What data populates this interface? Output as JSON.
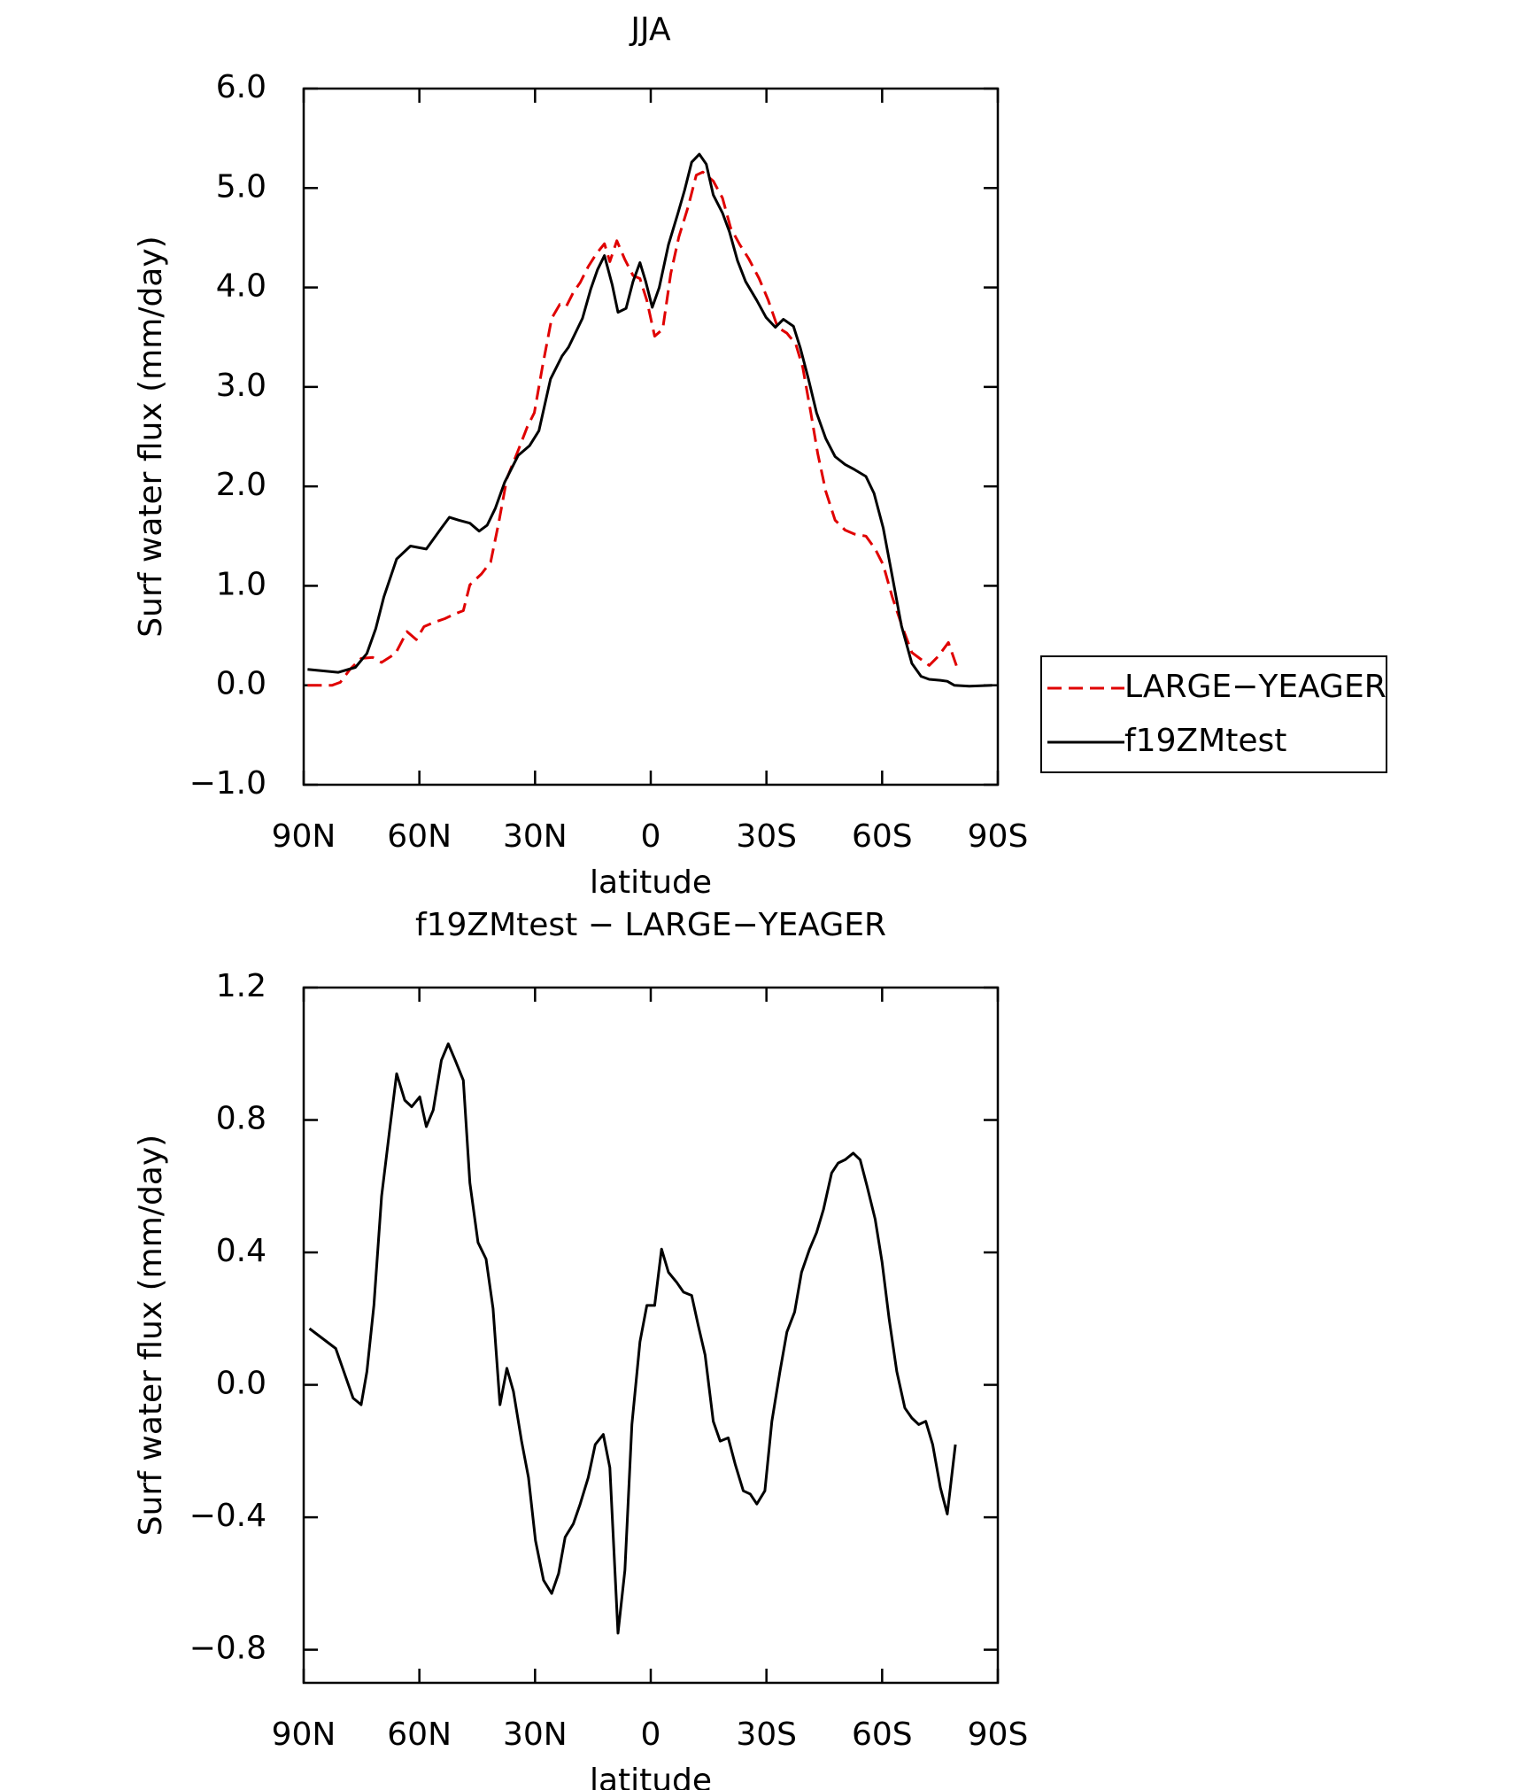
{
  "chart_data": [
    {
      "type": "line",
      "title": "JJA",
      "xlabel": "latitude",
      "ylabel": "Surf water flux (mm/day)",
      "xlim": [
        90,
        -90
      ],
      "ylim": [
        -1,
        6
      ],
      "xticks": [
        {
          "value": 90,
          "label": "90N"
        },
        {
          "value": 60,
          "label": "60N"
        },
        {
          "value": 30,
          "label": "30N"
        },
        0,
        {
          "value": -30,
          "label": "30S"
        },
        {
          "value": -60,
          "label": "60S"
        },
        {
          "value": -90,
          "label": "90S"
        }
      ],
      "yticks": [
        {
          "value": -1,
          "label": "−1.0"
        },
        {
          "value": 0,
          "label": "0.0"
        },
        {
          "value": 1,
          "label": "1.0"
        },
        {
          "value": 2,
          "label": "2.0"
        },
        {
          "value": 3,
          "label": "3.0"
        },
        {
          "value": 4,
          "label": "4.0"
        },
        {
          "value": 5,
          "label": "5.0"
        },
        {
          "value": 6,
          "label": "6.0"
        }
      ],
      "legend": "right",
      "series": [
        {
          "name": "LARGE−YEAGER",
          "color": "#e00000",
          "dash": true,
          "x": [
            89,
            82.6,
            80.5,
            78,
            75.1,
            72.1,
            69.8,
            66.2,
            63.2,
            60.8,
            58.8,
            56.4,
            53.4,
            50.7,
            48.6,
            46.9,
            43.9,
            41.5,
            39.4,
            37.3,
            34.4,
            32,
            30.2,
            28.1,
            25.7,
            23.6,
            21.9,
            20.1,
            18.3,
            16.2,
            14.1,
            12,
            10.6,
            8.8,
            6.7,
            4.6,
            2.8,
            1.0,
            -1.0,
            -3.1,
            -5.2,
            -7.3,
            -9.7,
            -11.8,
            -13.5,
            -16.2,
            -18.6,
            -20.7,
            -23.1,
            -25.4,
            -28.1,
            -30.5,
            -32.9,
            -35.3,
            -37.6,
            -39.4,
            -41.5,
            -43.3,
            -45.4,
            -47.8,
            -50.4,
            -52.8,
            -55.8,
            -58.2,
            -60.3,
            -62.6,
            -65.3,
            -67.7,
            -70.1,
            -72.2,
            -74.5,
            -77.2,
            -79.6
          ],
          "values": [
            0.0,
            0.0,
            0.03,
            0.16,
            0.27,
            0.28,
            0.23,
            0.32,
            0.54,
            0.46,
            0.59,
            0.63,
            0.67,
            0.72,
            0.75,
            1.01,
            1.12,
            1.24,
            1.64,
            2.08,
            2.36,
            2.6,
            2.74,
            3.2,
            3.69,
            3.83,
            3.81,
            3.95,
            4.05,
            4.21,
            4.34,
            4.44,
            4.26,
            4.47,
            4.28,
            4.12,
            4.09,
            3.87,
            3.51,
            3.58,
            4.14,
            4.51,
            4.81,
            5.13,
            5.16,
            5.07,
            4.9,
            4.6,
            4.43,
            4.29,
            4.09,
            3.87,
            3.6,
            3.54,
            3.43,
            3.2,
            2.74,
            2.33,
            1.95,
            1.66,
            1.56,
            1.52,
            1.5,
            1.37,
            1.21,
            0.89,
            0.58,
            0.33,
            0.26,
            0.2,
            0.29,
            0.43,
            0.16
          ]
        },
        {
          "name": "f19ZMtest",
          "color": "#000000",
          "dash": false,
          "x": [
            89,
            81,
            76.6,
            73.6,
            71.3,
            69.2,
            65.9,
            62.3,
            58.2,
            54.3,
            52.2,
            49.8,
            46.9,
            44.5,
            42.4,
            40.3,
            37.9,
            34.4,
            31.4,
            29,
            26,
            23,
            21.3,
            19.2,
            17.7,
            15.6,
            13.8,
            12,
            10,
            8.5,
            6.4,
            4.6,
            2.8,
            1.3,
            -0.4,
            -2.2,
            -4.6,
            -7.0,
            -8.8,
            -10.6,
            -12.6,
            -14.4,
            -16.2,
            -18.6,
            -20.4,
            -22.5,
            -24.6,
            -27.5,
            -29.9,
            -32.3,
            -34.4,
            -37.0,
            -38.8,
            -40.9,
            -43.0,
            -45.4,
            -47.8,
            -50.4,
            -52.8,
            -55.8,
            -57.9,
            -60.3,
            -62.6,
            -65.0,
            -67.7,
            -70.1,
            -72.2,
            -75.1,
            -76.9,
            -78.7,
            -82.6,
            -88.5
          ],
          "values": [
            0.16,
            0.13,
            0.18,
            0.32,
            0.57,
            0.89,
            1.27,
            1.4,
            1.37,
            1.58,
            1.69,
            1.66,
            1.63,
            1.55,
            1.61,
            1.78,
            2.04,
            2.31,
            2.41,
            2.56,
            3.08,
            3.31,
            3.4,
            3.57,
            3.69,
            3.98,
            4.18,
            4.32,
            4.03,
            3.75,
            3.79,
            4.06,
            4.25,
            4.06,
            3.8,
            4.0,
            4.43,
            4.74,
            4.98,
            5.26,
            5.34,
            5.24,
            4.93,
            4.75,
            4.56,
            4.27,
            4.06,
            3.87,
            3.7,
            3.6,
            3.68,
            3.61,
            3.39,
            3.08,
            2.74,
            2.48,
            2.3,
            2.22,
            2.17,
            2.1,
            1.93,
            1.58,
            1.1,
            0.6,
            0.22,
            0.09,
            0.06,
            0.05,
            0.04,
            0.0,
            -0.01,
            0.0
          ]
        }
      ]
    },
    {
      "type": "line",
      "title": "f19ZMtest − LARGE−YEAGER",
      "xlabel": "latitude",
      "ylabel": "Surf water flux (mm/day)",
      "xlim": [
        90,
        -90
      ],
      "ylim": [
        -0.9,
        1.2
      ],
      "xticks": [
        {
          "value": 90,
          "label": "90N"
        },
        {
          "value": 60,
          "label": "60N"
        },
        {
          "value": 30,
          "label": "30N"
        },
        0,
        {
          "value": -30,
          "label": "30S"
        },
        {
          "value": -60,
          "label": "60S"
        },
        {
          "value": -90,
          "label": "90S"
        }
      ],
      "yticks": [
        {
          "value": -0.8,
          "label": "−0.8"
        },
        {
          "value": -0.4,
          "label": "−0.4"
        },
        {
          "value": 0,
          "label": "0.0"
        },
        0.4,
        0.8,
        1.2
      ],
      "series": [
        {
          "color": "#000000",
          "dash": false,
          "x": [
            88.5,
            81.7,
            77.2,
            75.1,
            73.6,
            71.8,
            69.8,
            67.7,
            65.9,
            63.8,
            62.0,
            59.9,
            58.2,
            56.4,
            54.3,
            52.5,
            50.7,
            48.6,
            46.9,
            44.8,
            42.7,
            40.9,
            39.1,
            37.3,
            35.6,
            33.5,
            31.7,
            29.9,
            27.8,
            25.7,
            23.9,
            22.2,
            20.1,
            18.3,
            16.2,
            14.4,
            12.3,
            10.6,
            8.5,
            6.7,
            4.9,
            2.8,
            1.0,
            -1.0,
            -2.8,
            -4.6,
            -6.7,
            -8.5,
            -10.6,
            -12.3,
            -14.1,
            -16.2,
            -18,
            -20.1,
            -21.9,
            -24,
            -25.8,
            -27.5,
            -29.6,
            -31.4,
            -33.5,
            -35.3,
            -37.3,
            -39.1,
            -41.2,
            -43,
            -44.8,
            -46.9,
            -48.6,
            -50.4,
            -52.5,
            -54.3,
            -56.1,
            -58.2,
            -60,
            -61.8,
            -63.8,
            -65.9,
            -67.7,
            -69.5,
            -71.3,
            -73.1,
            -75.1,
            -76.9,
            -79
          ],
          "values": [
            0.17,
            0.11,
            -0.04,
            -0.06,
            0.04,
            0.24,
            0.57,
            0.77,
            0.94,
            0.86,
            0.84,
            0.87,
            0.78,
            0.83,
            0.98,
            1.03,
            0.98,
            0.92,
            0.61,
            0.43,
            0.38,
            0.23,
            -0.06,
            0.05,
            -0.02,
            -0.17,
            -0.28,
            -0.47,
            -0.59,
            -0.63,
            -0.57,
            -0.46,
            -0.42,
            -0.36,
            -0.28,
            -0.18,
            -0.15,
            -0.25,
            -0.75,
            -0.56,
            -0.12,
            0.13,
            0.24,
            0.24,
            0.41,
            0.34,
            0.31,
            0.28,
            0.27,
            0.18,
            0.09,
            -0.11,
            -0.17,
            -0.16,
            -0.24,
            -0.32,
            -0.33,
            -0.36,
            -0.32,
            -0.11,
            0.04,
            0.16,
            0.22,
            0.34,
            0.41,
            0.46,
            0.53,
            0.64,
            0.67,
            0.68,
            0.7,
            0.68,
            0.6,
            0.5,
            0.37,
            0.2,
            0.04,
            -0.07,
            -0.1,
            -0.12,
            -0.11,
            -0.18,
            -0.31,
            -0.39,
            -0.18
          ]
        }
      ]
    }
  ]
}
